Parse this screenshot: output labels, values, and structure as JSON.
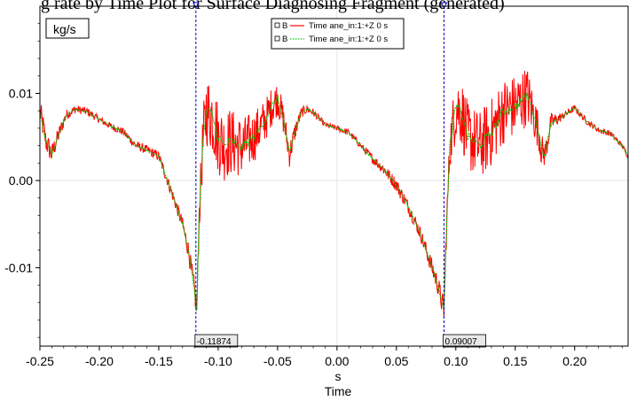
{
  "header": {
    "title_fragment": "g rate by Time Plot for Surface Diagnosing Fragment (generated)"
  },
  "chart_data": {
    "type": "line",
    "title": "",
    "xlabel": "Time",
    "xunit": "s",
    "yunit": "kg/s",
    "xlim": [
      -0.25,
      0.245
    ],
    "ylim": [
      -0.019,
      0.02
    ],
    "x_ticks": [
      -0.25,
      -0.2,
      -0.15,
      -0.1,
      -0.05,
      0.0,
      0.05,
      0.1,
      0.15,
      0.2
    ],
    "x_tick_labels": [
      "-0.25",
      "-0.20",
      "-0.15",
      "-0.10",
      "-0.05",
      "0.00",
      "0.05",
      "0.10",
      "0.15",
      "0.20"
    ],
    "y_ticks": [
      -0.01,
      0.0,
      0.01
    ],
    "y_tick_labels": [
      "-0.01",
      "0.00",
      "0.01"
    ],
    "grid": true,
    "legend_position": "top-center",
    "cursors": [
      {
        "x": -0.11874,
        "label": "-0.11874"
      },
      {
        "x": 0.09007,
        "label": "0.09007"
      }
    ],
    "series": [
      {
        "name": "Time ane_in:1:+Z 0 s",
        "legend_marker": "B",
        "color": "#ff0000",
        "style": "solid",
        "noise_profile": [
          [
            -0.25,
            0.0015
          ],
          [
            -0.24,
            0.0012
          ],
          [
            -0.225,
            0.0005
          ],
          [
            -0.19,
            0.0004
          ],
          [
            -0.15,
            0.0006
          ],
          [
            -0.13,
            0.0008
          ],
          [
            -0.122,
            0.0012
          ],
          [
            -0.118,
            0.0015
          ],
          [
            -0.112,
            0.004
          ],
          [
            -0.105,
            0.0045
          ],
          [
            -0.09,
            0.004
          ],
          [
            -0.06,
            0.0025
          ],
          [
            -0.04,
            0.0015
          ],
          [
            -0.03,
            0.0006
          ],
          [
            -0.01,
            0.0003
          ],
          [
            0.02,
            0.0004
          ],
          [
            0.05,
            0.0008
          ],
          [
            0.07,
            0.0008
          ],
          [
            0.085,
            0.0012
          ],
          [
            0.09,
            0.0015
          ],
          [
            0.1,
            0.004
          ],
          [
            0.13,
            0.004
          ],
          [
            0.16,
            0.0035
          ],
          [
            0.175,
            0.0015
          ],
          [
            0.19,
            0.0004
          ],
          [
            0.245,
            0.0003
          ]
        ]
      },
      {
        "name": "Time ane_in:1:+Z 0 s",
        "legend_marker": "B",
        "color": "#00cc00",
        "style": "dotted",
        "x": [
          -0.25,
          -0.247,
          -0.245,
          -0.24,
          -0.235,
          -0.228,
          -0.22,
          -0.21,
          -0.2,
          -0.19,
          -0.18,
          -0.17,
          -0.16,
          -0.15,
          -0.14,
          -0.13,
          -0.125,
          -0.12,
          -0.118,
          -0.116,
          -0.113,
          -0.11,
          -0.105,
          -0.1,
          -0.095,
          -0.09,
          -0.08,
          -0.07,
          -0.06,
          -0.055,
          -0.05,
          -0.045,
          -0.04,
          -0.035,
          -0.03,
          -0.025,
          -0.02,
          -0.01,
          0.0,
          0.01,
          0.02,
          0.03,
          0.04,
          0.05,
          0.06,
          0.07,
          0.08,
          0.085,
          0.09,
          0.092,
          0.095,
          0.1,
          0.105,
          0.11,
          0.12,
          0.13,
          0.14,
          0.15,
          0.16,
          0.165,
          0.17,
          0.172,
          0.175,
          0.18,
          0.19,
          0.2,
          0.21,
          0.22,
          0.23,
          0.24,
          0.245
        ],
        "y": [
          0.008,
          0.006,
          0.0045,
          0.003,
          0.005,
          0.0075,
          0.0082,
          0.0079,
          0.007,
          0.0062,
          0.0056,
          0.0041,
          0.0035,
          0.0028,
          -0.001,
          -0.005,
          -0.008,
          -0.0125,
          -0.015,
          -0.004,
          0.004,
          0.008,
          0.0075,
          0.005,
          0.004,
          0.0045,
          0.0038,
          0.005,
          0.007,
          0.0085,
          0.0095,
          0.007,
          0.003,
          0.0058,
          0.0078,
          0.0082,
          0.0078,
          0.0064,
          0.006,
          0.0055,
          0.004,
          0.0025,
          0.0012,
          -0.0005,
          -0.003,
          -0.006,
          -0.01,
          -0.012,
          -0.015,
          -0.006,
          0.004,
          0.0085,
          0.0078,
          0.005,
          0.004,
          0.0055,
          0.008,
          0.0085,
          0.0098,
          0.0078,
          0.0055,
          0.0035,
          0.003,
          0.0066,
          0.0074,
          0.0083,
          0.0068,
          0.0058,
          0.0054,
          0.004,
          0.0028
        ]
      }
    ]
  }
}
